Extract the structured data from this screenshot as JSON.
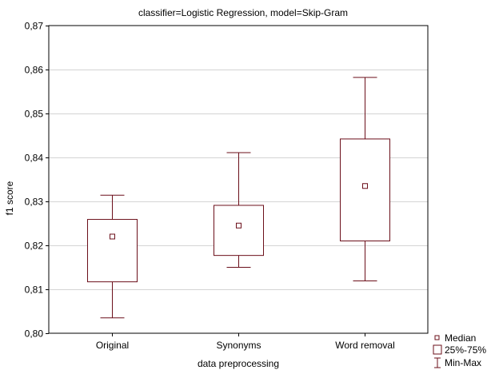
{
  "chart_data": {
    "type": "boxplot",
    "title": "classifier=Logistic Regression, model=Skip-Gram",
    "xlabel": "data preprocessing",
    "ylabel": "f1 score",
    "ylim": [
      0.8,
      0.87
    ],
    "yticks": [
      0.8,
      0.81,
      0.82,
      0.83,
      0.84,
      0.85,
      0.86,
      0.87
    ],
    "ytick_labels": [
      "0,80",
      "0,81",
      "0,82",
      "0,83",
      "0,84",
      "0,85",
      "0,86",
      "0,87"
    ],
    "grid": true,
    "categories": [
      "Original",
      "Synonyms",
      "Word removal"
    ],
    "boxes": [
      {
        "name": "Original",
        "min": 0.8035,
        "q1": 0.8117,
        "median": 0.822,
        "q3": 0.8259,
        "max": 0.8314
      },
      {
        "name": "Synonyms",
        "min": 0.815,
        "q1": 0.8177,
        "median": 0.8245,
        "q3": 0.8291,
        "max": 0.8411
      },
      {
        "name": "Word removal",
        "min": 0.8119,
        "q1": 0.821,
        "median": 0.8335,
        "q3": 0.8442,
        "max": 0.8582
      }
    ],
    "legend": {
      "position": "bottom-right",
      "items": [
        {
          "key": "median",
          "label": "Median"
        },
        {
          "key": "box",
          "label": "25%-75%"
        },
        {
          "key": "whisker",
          "label": "Min-Max"
        }
      ]
    },
    "colors": {
      "box": "#6b0f1a",
      "grid": "#d4d4d4",
      "text": "#000000"
    }
  }
}
